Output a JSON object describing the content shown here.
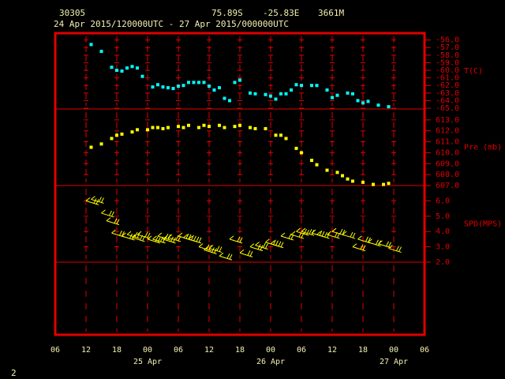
{
  "header": {
    "station": "30305",
    "latitude": "75.89S",
    "longitude": "-25.83E",
    "elevation": "3661M",
    "period": "24 Apr 2015/120000UTC - 27 Apr 2015/000000UTC",
    "page": "2"
  },
  "chart_data": [
    {
      "type": "scatter",
      "ylabel": "T(C)",
      "color": "#00ffff",
      "x": [
        "2015-04-24 13:00",
        "2015-04-24 15:00",
        "2015-04-24 17:00",
        "2015-04-24 18:00",
        "2015-04-24 19:00",
        "2015-04-24 20:00",
        "2015-04-24 21:00",
        "2015-04-24 22:00",
        "2015-04-24 23:00",
        "2015-04-25 01:00",
        "2015-04-25 02:00",
        "2015-04-25 03:00",
        "2015-04-25 04:00",
        "2015-04-25 05:00",
        "2015-04-25 06:00",
        "2015-04-25 07:00",
        "2015-04-25 08:00",
        "2015-04-25 09:00",
        "2015-04-25 10:00",
        "2015-04-25 11:00",
        "2015-04-25 12:00",
        "2015-04-25 13:00",
        "2015-04-25 14:00",
        "2015-04-25 15:00",
        "2015-04-25 16:00",
        "2015-04-25 17:00",
        "2015-04-25 18:00",
        "2015-04-25 20:00",
        "2015-04-25 21:00",
        "2015-04-25 23:00",
        "2015-04-26 00:00",
        "2015-04-26 01:00",
        "2015-04-26 02:00",
        "2015-04-26 03:00",
        "2015-04-26 04:00",
        "2015-04-26 05:00",
        "2015-04-26 06:00",
        "2015-04-26 08:00",
        "2015-04-26 09:00",
        "2015-04-26 11:00",
        "2015-04-26 12:00",
        "2015-04-26 13:00",
        "2015-04-26 15:00",
        "2015-04-26 16:00",
        "2015-04-26 17:00",
        "2015-04-26 18:00",
        "2015-04-26 19:00",
        "2015-04-26 21:00",
        "2015-04-26 23:00"
      ],
      "values": [
        -56.6,
        -57.5,
        -59.6,
        -60.0,
        -60.1,
        -59.7,
        -59.5,
        -59.7,
        -60.8,
        -62.2,
        -61.9,
        -62.2,
        -62.3,
        -62.4,
        -62.1,
        -62.0,
        -61.6,
        -61.6,
        -61.6,
        -61.6,
        -62.1,
        -62.6,
        -62.3,
        -63.7,
        -64.0,
        -61.6,
        -61.3,
        -63.0,
        -63.1,
        -63.2,
        -63.4,
        -63.8,
        -63.1,
        -63.1,
        -62.6,
        -61.9,
        -62.0,
        -62.0,
        -62.0,
        -62.6,
        -63.6,
        -63.3,
        -63.0,
        -63.1,
        -64.0,
        -64.3,
        -64.1,
        -64.6,
        -64.8
      ],
      "xlim": [
        "2015-04-24 06:00",
        "2015-04-27 06:00"
      ],
      "xticks": [
        "2015-04-24 06:00",
        "2015-04-24 12:00",
        "2015-04-24 18:00",
        "2015-04-25 00:00",
        "2015-04-25 06:00",
        "2015-04-25 12:00",
        "2015-04-25 18:00",
        "2015-04-26 00:00",
        "2015-04-26 06:00",
        "2015-04-26 12:00",
        "2015-04-26 18:00",
        "2015-04-27 00:00",
        "2015-04-27 06:00"
      ],
      "ylim": [
        -65.1,
        -55.1
      ],
      "yticks": [
        {
          "value": -56,
          "label": "-56.0"
        },
        {
          "value": -57,
          "label": "-57.0"
        },
        {
          "value": -58,
          "label": "-58.0"
        },
        {
          "value": -59,
          "label": "-59.0"
        },
        {
          "value": -60,
          "label": "-60.0"
        },
        {
          "value": -61,
          "label": "-61.0"
        },
        {
          "value": -62,
          "label": "-62.0"
        },
        {
          "value": -63,
          "label": "-63.0"
        },
        {
          "value": -64,
          "label": "-64.0"
        },
        {
          "value": -65,
          "label": "-65.0"
        }
      ]
    },
    {
      "type": "scatter",
      "ylabel": "Pre (mb)",
      "color": "#ffff00",
      "x": [
        "2015-04-24 13:00",
        "2015-04-24 15:00",
        "2015-04-24 17:00",
        "2015-04-24 18:00",
        "2015-04-24 19:00",
        "2015-04-24 21:00",
        "2015-04-24 22:00",
        "2015-04-25 00:00",
        "2015-04-25 01:00",
        "2015-04-25 02:00",
        "2015-04-25 03:00",
        "2015-04-25 04:00",
        "2015-04-25 06:00",
        "2015-04-25 07:00",
        "2015-04-25 08:00",
        "2015-04-25 10:00",
        "2015-04-25 11:00",
        "2015-04-25 12:00",
        "2015-04-25 14:00",
        "2015-04-25 15:00",
        "2015-04-25 17:00",
        "2015-04-25 18:00",
        "2015-04-25 20:00",
        "2015-04-25 21:00",
        "2015-04-25 23:00",
        "2015-04-26 01:00",
        "2015-04-26 02:00",
        "2015-04-26 03:00",
        "2015-04-26 05:00",
        "2015-04-26 06:00",
        "2015-04-26 08:00",
        "2015-04-26 09:00",
        "2015-04-26 11:00",
        "2015-04-26 13:00",
        "2015-04-26 14:00",
        "2015-04-26 15:00",
        "2015-04-26 16:00",
        "2015-04-26 18:00",
        "2015-04-26 20:00",
        "2015-04-26 22:00",
        "2015-04-26 23:00"
      ],
      "values": [
        610.5,
        610.8,
        611.3,
        611.6,
        611.7,
        611.9,
        612.1,
        612.1,
        612.3,
        612.3,
        612.2,
        612.3,
        612.4,
        612.3,
        612.5,
        612.3,
        612.5,
        612.4,
        612.5,
        612.3,
        612.4,
        612.5,
        612.3,
        612.2,
        612.2,
        611.6,
        611.6,
        611.3,
        610.4,
        610.0,
        609.3,
        608.9,
        608.4,
        608.2,
        607.9,
        607.6,
        607.4,
        607.3,
        607.1,
        607.1,
        607.2
      ],
      "xlim": [
        "2015-04-24 06:00",
        "2015-04-27 06:00"
      ],
      "xticks": [
        "2015-04-24 06:00",
        "2015-04-24 12:00",
        "2015-04-24 18:00",
        "2015-04-25 00:00",
        "2015-04-25 06:00",
        "2015-04-25 12:00",
        "2015-04-25 18:00",
        "2015-04-26 00:00",
        "2015-04-26 06:00",
        "2015-04-26 12:00",
        "2015-04-26 18:00",
        "2015-04-27 00:00",
        "2015-04-27 06:00"
      ],
      "ylim": [
        607,
        614
      ],
      "yticks": [
        {
          "value": 613,
          "label": "613.0"
        },
        {
          "value": 612,
          "label": "612.0"
        },
        {
          "value": 611,
          "label": "611.0"
        },
        {
          "value": 610,
          "label": "610.0"
        },
        {
          "value": 609,
          "label": "609.0"
        },
        {
          "value": 608,
          "label": "608.0"
        },
        {
          "value": 607,
          "label": "607.0"
        }
      ]
    },
    {
      "type": "barb",
      "ylabel": "SPD(MPS)",
      "color": "#ffff00",
      "x": [
        "2015-04-24 12:00",
        "2015-04-24 13:00",
        "2015-04-24 15:00",
        "2015-04-24 16:00",
        "2015-04-24 17:00",
        "2015-04-24 19:00",
        "2015-04-24 20:00",
        "2015-04-24 21:00",
        "2015-04-24 22:00",
        "2015-04-25 00:00",
        "2015-04-25 01:00",
        "2015-04-25 02:00",
        "2015-04-25 03:00",
        "2015-04-25 04:00",
        "2015-04-25 06:00",
        "2015-04-25 07:00",
        "2015-04-25 08:00",
        "2015-04-25 10:00",
        "2015-04-25 11:00",
        "2015-04-25 12:00",
        "2015-04-25 14:00",
        "2015-04-25 16:00",
        "2015-04-25 18:00",
        "2015-04-25 20:00",
        "2015-04-25 21:00",
        "2015-04-25 23:00",
        "2015-04-26 00:00",
        "2015-04-26 02:00",
        "2015-04-26 04:00",
        "2015-04-26 05:00",
        "2015-04-26 06:00",
        "2015-04-26 08:00",
        "2015-04-26 09:00",
        "2015-04-26 11:00",
        "2015-04-26 12:00",
        "2015-04-26 14:00",
        "2015-04-26 16:00",
        "2015-04-26 17:00",
        "2015-04-26 19:00",
        "2015-04-26 21:00",
        "2015-04-26 23:00"
      ],
      "values": [
        6.0,
        6.1,
        5.2,
        4.7,
        3.9,
        3.7,
        3.8,
        3.6,
        3.8,
        3.5,
        3.5,
        3.7,
        3.5,
        3.6,
        3.7,
        3.6,
        3.5,
        3.0,
        2.8,
        2.9,
        2.4,
        3.5,
        2.6,
        3.0,
        3.1,
        3.3,
        3.2,
        3.7,
        3.8,
        4.0,
        4.0,
        3.9,
        3.8,
        3.8,
        4.0,
        3.8,
        3.0,
        3.5,
        3.3,
        3.2,
        2.9
      ],
      "xlim": [
        "2015-04-24 06:00",
        "2015-04-27 06:00"
      ],
      "xticks": [
        {
          "value": "2015-04-24 06:00",
          "label": "06"
        },
        {
          "value": "2015-04-24 12:00",
          "label": "12"
        },
        {
          "value": "2015-04-24 18:00",
          "label": "18"
        },
        {
          "value": "2015-04-25 00:00",
          "label": "00"
        },
        {
          "value": "2015-04-25 06:00",
          "label": "06"
        },
        {
          "value": "2015-04-25 12:00",
          "label": "12"
        },
        {
          "value": "2015-04-25 18:00",
          "label": "18"
        },
        {
          "value": "2015-04-26 00:00",
          "label": "00"
        },
        {
          "value": "2015-04-26 06:00",
          "label": "06"
        },
        {
          "value": "2015-04-26 12:00",
          "label": "12"
        },
        {
          "value": "2015-04-26 18:00",
          "label": "18"
        },
        {
          "value": "2015-04-27 00:00",
          "label": "00"
        },
        {
          "value": "2015-04-27 06:00",
          "label": "06"
        }
      ],
      "date_labels": [
        {
          "value": "2015-04-25 00:00",
          "label": "25 Apr"
        },
        {
          "value": "2015-04-26 00:00",
          "label": "26 Apr"
        },
        {
          "value": "2015-04-27 00:00",
          "label": "27 Apr"
        }
      ],
      "ylim": [
        2,
        7
      ],
      "yticks": [
        {
          "value": 6,
          "label": "6.0"
        },
        {
          "value": 5,
          "label": "5.0"
        },
        {
          "value": 4,
          "label": "4.0"
        },
        {
          "value": 3,
          "label": "3.0"
        },
        {
          "value": 2,
          "label": "2.0"
        }
      ]
    }
  ]
}
